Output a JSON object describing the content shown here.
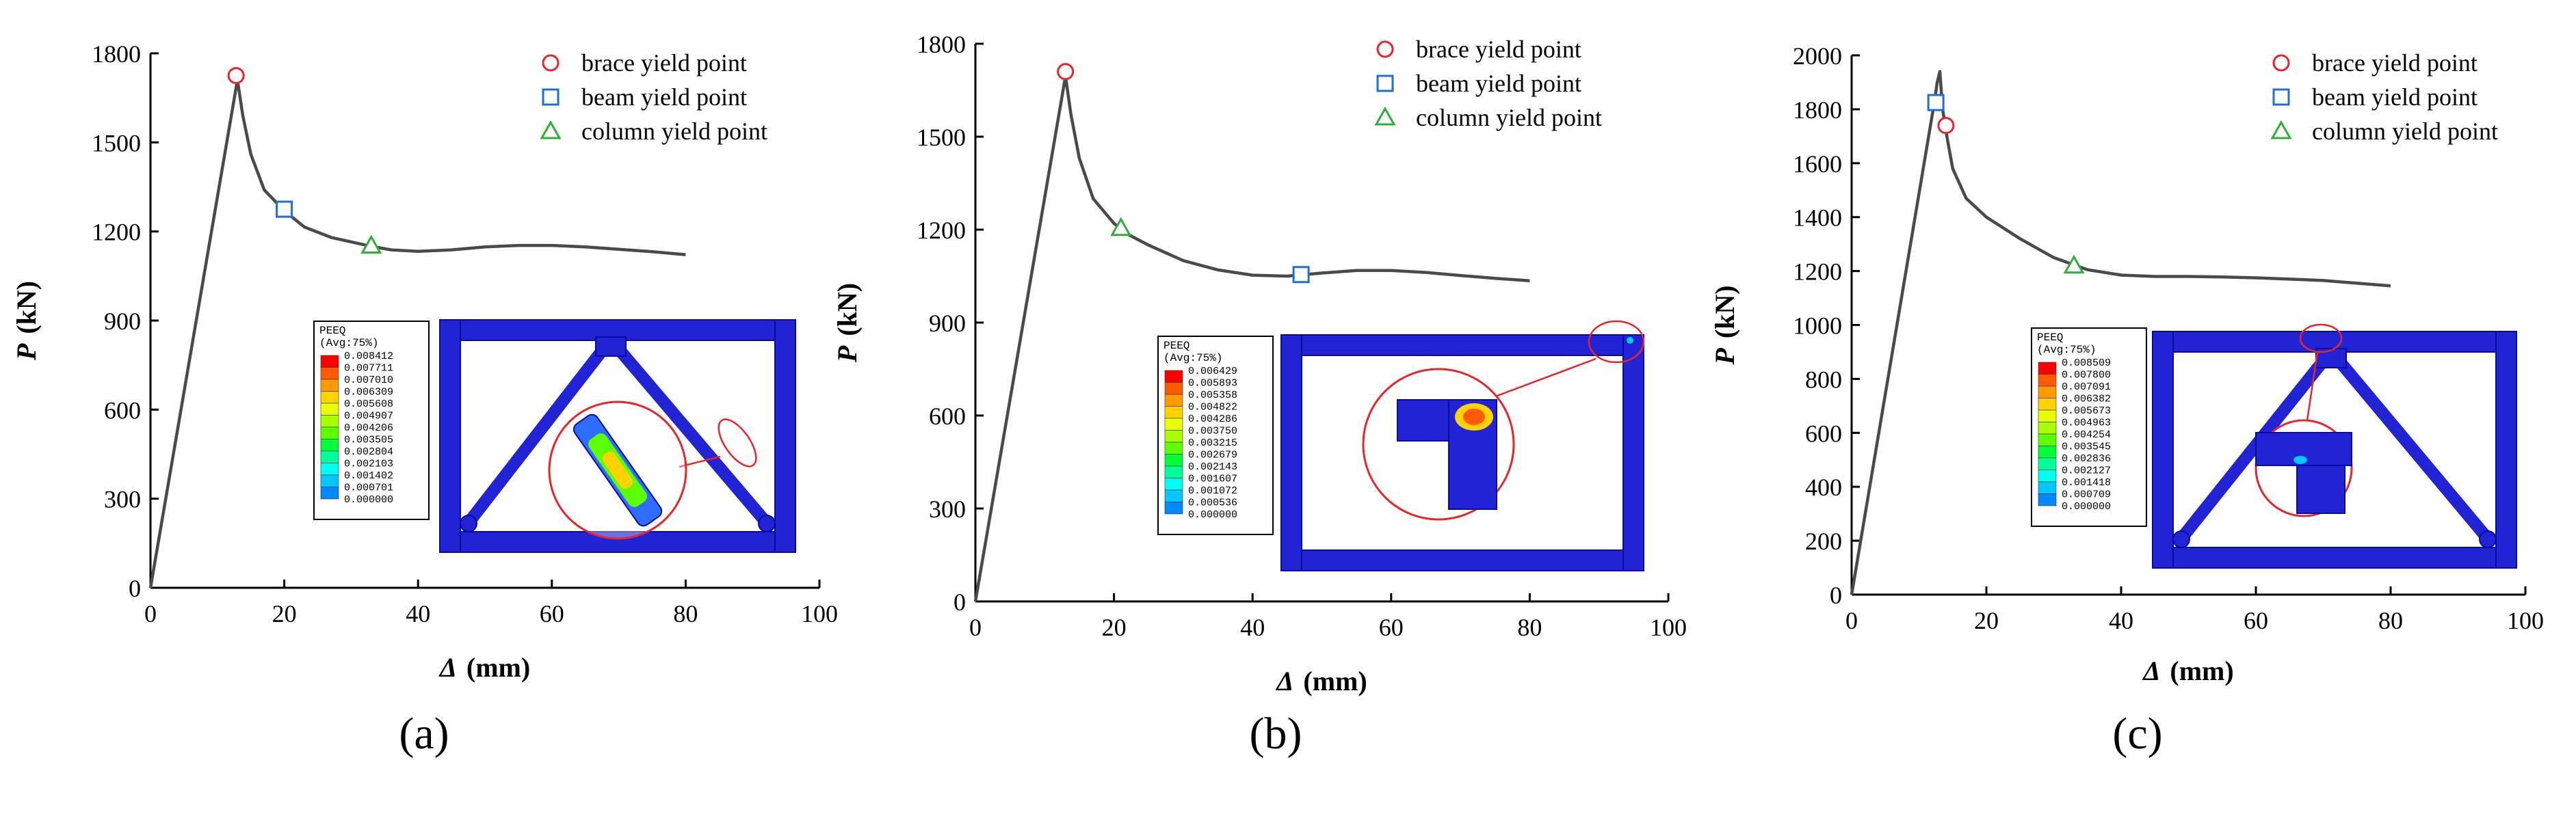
{
  "colors": {
    "curve": "#4a4a4a",
    "brace": "#e8262a",
    "beam": "#1f6fd6",
    "column": "#2fae3a",
    "frame": "#2323d6",
    "frame_edge": "#0a0aa0",
    "callout": "#e8262a",
    "contour": [
      "#ff0000",
      "#ff5a00",
      "#ff9a00",
      "#ffd200",
      "#e8ff00",
      "#a8ff00",
      "#5cff00",
      "#00ff35",
      "#00ff9a",
      "#00fff0",
      "#00c8ff",
      "#0088ff",
      "#0044ff",
      "#0000ff"
    ]
  },
  "legend_labels": [
    "brace yield point",
    "beam yield point",
    "column yield point"
  ],
  "colorbar_title": [
    "PEEQ",
    "(Avg:75%)"
  ],
  "chart_data": [
    {
      "type": "line",
      "panel_label": "(a)",
      "xlabel": "Δ (mm)",
      "ylabel": "P (kN)",
      "xlim": [
        0,
        100
      ],
      "ylim": [
        0,
        1800
      ],
      "xticks": [
        0,
        20,
        40,
        60,
        80,
        100
      ],
      "yticks": [
        0,
        300,
        600,
        900,
        1200,
        1500,
        1800
      ],
      "series": [
        {
          "x": [
            0,
            13,
            13.8,
            15,
            17,
            20,
            23,
            27,
            30,
            33,
            36,
            40,
            45,
            50,
            55,
            60,
            65,
            70,
            75,
            80
          ],
          "y": [
            0,
            1710,
            1590,
            1460,
            1340,
            1270,
            1215,
            1180,
            1165,
            1150,
            1138,
            1133,
            1138,
            1148,
            1153,
            1153,
            1148,
            1140,
            1132,
            1122
          ]
        }
      ],
      "markers": {
        "brace": {
          "x": 12.8,
          "y": 1725
        },
        "beam": {
          "x": 20,
          "y": 1275
        },
        "column": {
          "x": 33,
          "y": 1152
        }
      },
      "colorbar_values": [
        "0.008412",
        "0.007711",
        "0.007010",
        "0.006309",
        "0.005608",
        "0.004907",
        "0.004206",
        "0.003505",
        "0.002804",
        "0.002103",
        "0.001402",
        "0.000701",
        "0.000000"
      ]
    },
    {
      "type": "line",
      "panel_label": "(b)",
      "xlabel": "Δ (mm)",
      "ylabel": "P (kN)",
      "xlim": [
        0,
        100
      ],
      "ylim": [
        0,
        1800
      ],
      "xticks": [
        0,
        20,
        40,
        60,
        80,
        100
      ],
      "yticks": [
        0,
        300,
        600,
        900,
        1200,
        1500,
        1800
      ],
      "series": [
        {
          "x": [
            0,
            13,
            13.8,
            15,
            17,
            20,
            22,
            25,
            30,
            35,
            40,
            45,
            50,
            55,
            60,
            65,
            70,
            75,
            80
          ],
          "y": [
            0,
            1695,
            1570,
            1430,
            1300,
            1220,
            1185,
            1150,
            1100,
            1070,
            1053,
            1050,
            1060,
            1068,
            1068,
            1062,
            1052,
            1043,
            1035
          ]
        }
      ],
      "markers": {
        "brace": {
          "x": 13,
          "y": 1710
        },
        "beam": {
          "x": 47,
          "y": 1055
        },
        "column": {
          "x": 21,
          "y": 1205
        }
      },
      "colorbar_values": [
        "0.006429",
        "0.005893",
        "0.005358",
        "0.004822",
        "0.004286",
        "0.003750",
        "0.003215",
        "0.002679",
        "0.002143",
        "0.001607",
        "0.001072",
        "0.000536",
        "0.000000"
      ]
    },
    {
      "type": "line",
      "panel_label": "(c)",
      "xlabel": "Δ (mm)",
      "ylabel": "P (kN)",
      "xlim": [
        0,
        100
      ],
      "ylim": [
        0,
        2000
      ],
      "xticks": [
        0,
        20,
        40,
        60,
        80,
        100
      ],
      "yticks": [
        0,
        200,
        400,
        600,
        800,
        1000,
        1200,
        1400,
        1600,
        1800,
        2000
      ],
      "series": [
        {
          "x": [
            0,
            12.3,
            12.7,
            13.1,
            13.5,
            14.2,
            15,
            17,
            20,
            25,
            30,
            35,
            40,
            45,
            50,
            55,
            60,
            65,
            70,
            75,
            80
          ],
          "y": [
            0,
            1830,
            1900,
            1940,
            1800,
            1690,
            1580,
            1470,
            1400,
            1320,
            1250,
            1205,
            1185,
            1180,
            1180,
            1178,
            1175,
            1170,
            1165,
            1155,
            1145
          ]
        }
      ],
      "markers": {
        "brace": {
          "x": 14,
          "y": 1740
        },
        "beam": {
          "x": 12.5,
          "y": 1825
        },
        "column": {
          "x": 33,
          "y": 1220
        }
      },
      "colorbar_values": [
        "0.008509",
        "0.007800",
        "0.007091",
        "0.006382",
        "0.005673",
        "0.004963",
        "0.004254",
        "0.003545",
        "0.002836",
        "0.002127",
        "0.001418",
        "0.000709",
        "0.000000"
      ]
    }
  ]
}
